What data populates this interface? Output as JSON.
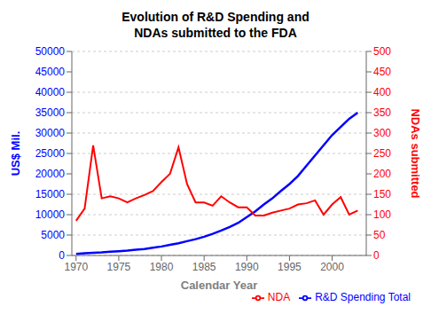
{
  "chart_data": {
    "type": "line",
    "title": "Evolution of R&D Spending and\nNDAs submitted to the FDA",
    "xlabel": "Calendar Year",
    "ylabel": "US$ Mil.",
    "y2label": "NDAs submitted",
    "x": [
      1970,
      1971,
      1972,
      1973,
      1974,
      1975,
      1976,
      1977,
      1978,
      1979,
      1980,
      1981,
      1982,
      1983,
      1984,
      1985,
      1986,
      1987,
      1988,
      1989,
      1990,
      1991,
      1992,
      1993,
      1994,
      1995,
      1996,
      1997,
      1998,
      1999,
      2000,
      2001,
      2002,
      2003
    ],
    "series": [
      {
        "name": "R&D Spending Total",
        "color": "#0000ff",
        "axis": "y",
        "values": [
          400,
          550,
          650,
          750,
          900,
          1050,
          1200,
          1400,
          1600,
          1900,
          2200,
          2600,
          3000,
          3500,
          4000,
          4600,
          5300,
          6100,
          7000,
          8000,
          9400,
          10800,
          12500,
          14000,
          15800,
          17500,
          19500,
          22000,
          24500,
          27000,
          29500,
          31500,
          33500,
          35000
        ]
      },
      {
        "name": "NDA",
        "color": "#ff0000",
        "axis": "y2",
        "values": [
          85,
          115,
          270,
          140,
          145,
          140,
          130,
          140,
          148,
          158,
          180,
          200,
          265,
          175,
          130,
          130,
          122,
          145,
          130,
          118,
          118,
          98,
          98,
          105,
          110,
          115,
          125,
          128,
          135,
          100,
          125,
          143,
          100,
          110
        ]
      }
    ],
    "xlim": [
      1969.5,
      2004.0
    ],
    "xticks": [
      1970,
      1975,
      1980,
      1985,
      1990,
      1995,
      2000
    ],
    "ylim": [
      0,
      50000
    ],
    "yticks": [
      0,
      5000,
      10000,
      15000,
      20000,
      25000,
      30000,
      35000,
      40000,
      45000,
      50000
    ],
    "y2lim": [
      0,
      500
    ],
    "y2ticks": [
      0,
      50,
      100,
      150,
      200,
      250,
      300,
      350,
      400,
      450,
      500
    ],
    "grid": true,
    "legend": "lower right"
  }
}
